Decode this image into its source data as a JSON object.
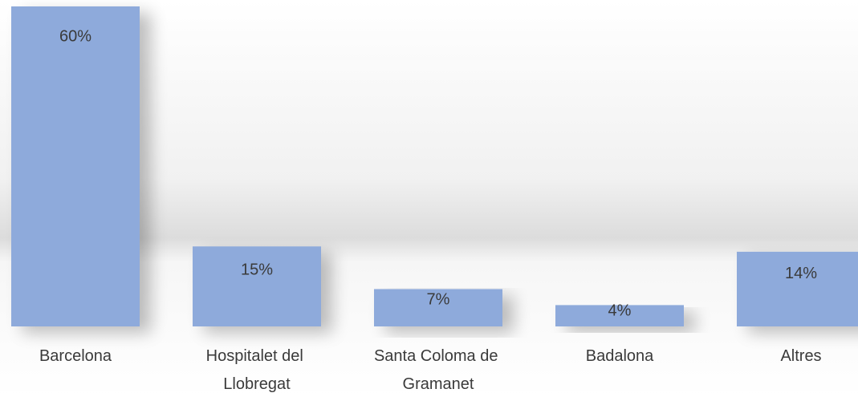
{
  "chart_data": {
    "type": "bar",
    "categories": [
      "Barcelona",
      "Hospitalet del Llobregat",
      "Santa Coloma de Gramanet",
      "Badalona",
      "Altres"
    ],
    "values": [
      60,
      15,
      7,
      4,
      14
    ],
    "value_labels": [
      "60%",
      "15%",
      "7%",
      "4%",
      "14%"
    ],
    "color": "#8eaadb"
  }
}
